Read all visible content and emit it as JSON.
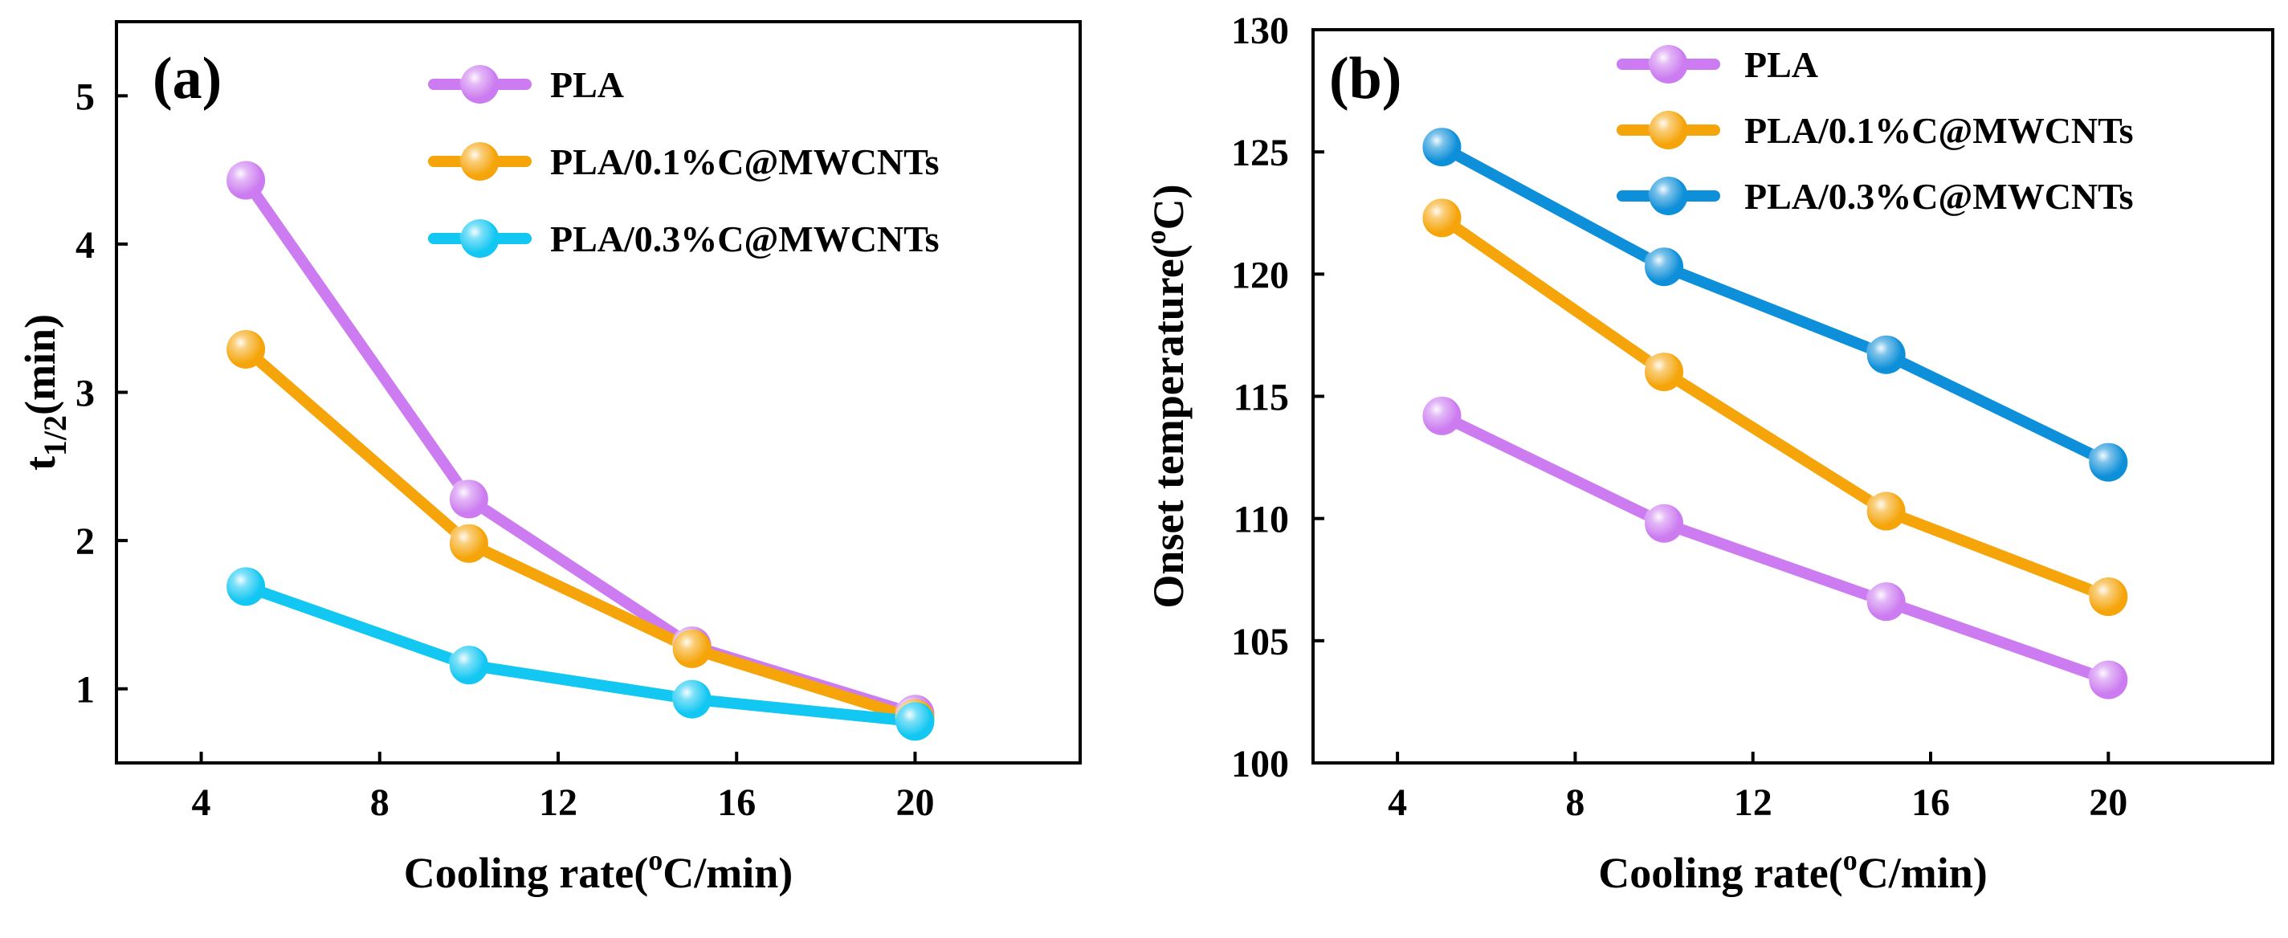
{
  "colors": {
    "PLA": "#cc7cf0",
    "PLA/0.1%C@MWCNTs": "#f5a50a",
    "PLA/0.3%C@MWCNTs_a": "#12c7f2",
    "PLA/0.3%C@MWCNTs_b": "#0d8fd9"
  },
  "chart_data": [
    {
      "type": "line",
      "panel_label": "(a)",
      "xlabel": "Cooling rate(°C/min)",
      "xlabel_parts": {
        "pre": "Cooling rate(",
        "sup": "o",
        "post": "C/min)"
      },
      "ylabel": "t1/2(min)",
      "ylabel_parts": {
        "pre": "t",
        "sub": "1/2",
        "post": "(min)"
      },
      "xlim": [
        2.1,
        23.7
      ],
      "ylim": [
        0.5,
        5.5
      ],
      "xticks": [
        4,
        8,
        12,
        16,
        20
      ],
      "yticks": [
        1,
        2,
        3,
        4,
        5
      ],
      "x": [
        5,
        10,
        15,
        20
      ],
      "legend_position": "top-right",
      "series": [
        {
          "name": "PLA",
          "color": "#cc7cf0",
          "values": [
            4.43,
            2.28,
            1.29,
            0.83
          ]
        },
        {
          "name": "PLA/0.1%C@MWCNTs",
          "color": "#f5a50a",
          "values": [
            3.29,
            1.98,
            1.27,
            0.8
          ]
        },
        {
          "name": "PLA/0.3%C@MWCNTs",
          "color": "#12c7f2",
          "values": [
            1.69,
            1.16,
            0.93,
            0.78
          ]
        }
      ]
    },
    {
      "type": "line",
      "panel_label": "(b)",
      "xlabel": "Cooling rate(°C/min)",
      "xlabel_parts": {
        "pre": "Cooling rate(",
        "sup": "o",
        "post": "C/min)"
      },
      "ylabel": "Onset temperature(°C)",
      "ylabel_parts": {
        "pre": "Onset temperature(",
        "sup": "o",
        "post": "C)"
      },
      "xlim": [
        2.1,
        23.7
      ],
      "ylim": [
        100,
        130
      ],
      "xticks": [
        4,
        8,
        12,
        16,
        20
      ],
      "yticks": [
        100,
        105,
        110,
        115,
        120,
        125,
        130
      ],
      "x": [
        5,
        10,
        15,
        20
      ],
      "legend_position": "top-right",
      "series": [
        {
          "name": "PLA",
          "color": "#cc7cf0",
          "values": [
            114.2,
            109.8,
            106.6,
            103.4
          ]
        },
        {
          "name": "PLA/0.1%C@MWCNTs",
          "color": "#f5a50a",
          "values": [
            122.3,
            116.0,
            110.3,
            106.8
          ]
        },
        {
          "name": "PLA/0.3%C@MWCNTs",
          "color": "#0d8fd9",
          "values": [
            125.2,
            120.3,
            116.7,
            112.3
          ]
        }
      ]
    }
  ]
}
